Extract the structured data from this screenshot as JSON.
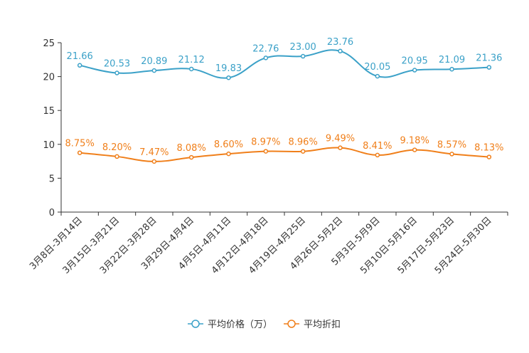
{
  "chart_data": {
    "type": "line",
    "title": "",
    "xlabel": "",
    "ylabel": "",
    "ylim": [
      0,
      25
    ],
    "yticks": [
      0,
      5,
      10,
      15,
      20,
      25
    ],
    "categories": [
      "3月8日-3月14日",
      "3月15日-3月21日",
      "3月22日-3月28日",
      "3月29日-4月4日",
      "4月5日-4月11日",
      "4月12日-4月18日",
      "4月19日-4月25日",
      "4月26日-5月2日",
      "5月3日-5月9日",
      "5月10日-5月16日",
      "5月17日-5月23日",
      "5月24日-5月30日"
    ],
    "series": [
      {
        "name": "平均价格（万）",
        "color": "#3ba1c8",
        "values": [
          21.66,
          20.53,
          20.89,
          21.12,
          19.83,
          22.76,
          23.0,
          23.76,
          20.05,
          20.95,
          21.09,
          21.36
        ],
        "labels": [
          "21.66",
          "20.53",
          "20.89",
          "21.12",
          "19.83",
          "22.76",
          "23.00",
          "23.76",
          "20.05",
          "20.95",
          "21.09",
          "21.36"
        ]
      },
      {
        "name": "平均折扣",
        "color": "#f07f1a",
        "values": [
          8.75,
          8.2,
          7.47,
          8.08,
          8.6,
          8.97,
          8.96,
          9.49,
          8.41,
          9.18,
          8.57,
          8.13
        ],
        "labels": [
          "8.75%",
          "8.20%",
          "7.47%",
          "8.08%",
          "8.60%",
          "8.97%",
          "8.96%",
          "9.49%",
          "8.41%",
          "9.18%",
          "8.57%",
          "8.13%"
        ]
      }
    ],
    "legend_position": "bottom-center"
  }
}
